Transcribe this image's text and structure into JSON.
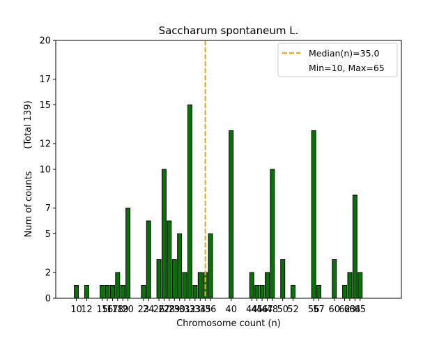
{
  "chart_data": {
    "type": "bar",
    "title": "Saccharum spontaneum L.",
    "xlabel": "Chromosome count (n)",
    "ylabel_lines": [
      "Num of counts",
      "(Total 139)"
    ],
    "xlim": [
      6,
      73
    ],
    "ylim": [
      0,
      20
    ],
    "yticks": [
      0,
      2,
      5,
      7,
      10,
      12,
      15,
      17,
      20
    ],
    "xticks": [
      10,
      12,
      15,
      16,
      17,
      18,
      19,
      20,
      23,
      24,
      26,
      27,
      28,
      29,
      30,
      31,
      32,
      33,
      34,
      35,
      36,
      40,
      44,
      45,
      46,
      47,
      48,
      50,
      52,
      56,
      57,
      60,
      62,
      63,
      64,
      65
    ],
    "xtick_labels": [
      "10",
      "12",
      "15",
      "16",
      "17",
      "18",
      "19",
      "20",
      "23",
      "24",
      "26",
      "27",
      "28",
      "29",
      "30",
      "31",
      "32",
      "33",
      "34",
      "35",
      "36",
      "40",
      "44",
      "45",
      "46",
      "47",
      "48",
      "50",
      "52",
      "56",
      "57",
      "60",
      "62",
      "63",
      "64",
      "65"
    ],
    "x": [
      10,
      12,
      15,
      16,
      17,
      18,
      19,
      20,
      23,
      24,
      26,
      27,
      28,
      29,
      30,
      31,
      32,
      33,
      34,
      35,
      36,
      40,
      44,
      45,
      46,
      47,
      48,
      50,
      52,
      56,
      57,
      60,
      62,
      63,
      64,
      65
    ],
    "values": [
      1,
      1,
      1,
      1,
      1,
      2,
      1,
      7,
      1,
      6,
      3,
      10,
      6,
      3,
      5,
      2,
      15,
      1,
      2,
      2,
      5,
      13,
      2,
      1,
      1,
      2,
      10,
      3,
      1,
      13,
      1,
      3,
      1,
      2,
      8,
      2
    ],
    "bar_color": "#007500",
    "median": 35.0,
    "median_color": "#ffa500",
    "legend": {
      "location": "top-right",
      "entries": [
        "Median(n)=35.0",
        "Min=10, Max=65"
      ]
    }
  }
}
